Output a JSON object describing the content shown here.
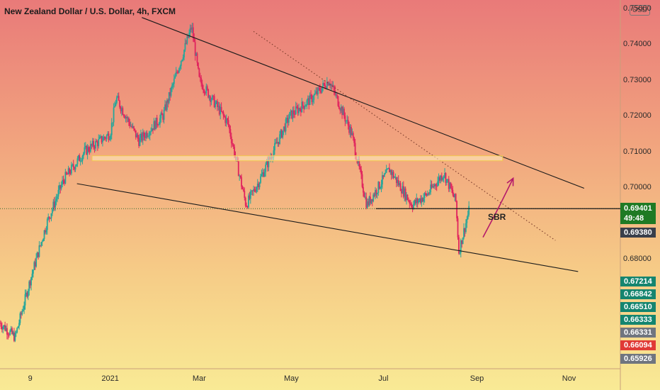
{
  "currency": "USD",
  "current_price": {
    "value": "0.69401",
    "countdown": "49:48",
    "color": "#1f7a24"
  },
  "price_badges": [
    {
      "value": "0.69380",
      "color": "#3a3f4b"
    },
    {
      "value": "0.67214",
      "color": "#15856f"
    },
    {
      "value": "0.66842",
      "color": "#15856f"
    },
    {
      "value": "0.66510",
      "color": "#15856f"
    },
    {
      "value": "0.66333",
      "color": "#15856f"
    },
    {
      "value": "0.66331",
      "color": "#70757f"
    },
    {
      "value": "0.66094",
      "color": "#e03a36"
    },
    {
      "value": "0.65926",
      "color": "#70757f"
    }
  ],
  "chart_data": {
    "type": "candlestick",
    "title": "New Zealand Dollar / U.S. Dollar, 4h, FXCM",
    "y_ticks": [
      "0.75000",
      "0.74000",
      "0.73000",
      "0.72000",
      "0.71000",
      "0.70000",
      "0.68000"
    ],
    "x_ticks": [
      "9",
      "2021",
      "Mar",
      "May",
      "Jul",
      "Sep",
      "Nov"
    ],
    "x_range": [
      "2020-10-20",
      "2021-12-05"
    ],
    "ylim": [
      0.6492,
      0.7524
    ],
    "bull_color": "#26a69a",
    "bear_color": "#e0245e",
    "price_path": [
      [
        "2020-10-20",
        0.662
      ],
      [
        "2020-10-30",
        0.658
      ],
      [
        "2020-11-09",
        0.674
      ],
      [
        "2020-11-20",
        0.69
      ],
      [
        "2020-12-01",
        0.702
      ],
      [
        "2020-12-15",
        0.71
      ],
      [
        "2021-01-01",
        0.715
      ],
      [
        "2021-01-05",
        0.725
      ],
      [
        "2021-01-20",
        0.713
      ],
      [
        "2021-02-05",
        0.72
      ],
      [
        "2021-02-24",
        0.745
      ],
      [
        "2021-03-01",
        0.73
      ],
      [
        "2021-03-20",
        0.718
      ],
      [
        "2021-04-01",
        0.695
      ],
      [
        "2021-04-10",
        0.702
      ],
      [
        "2021-04-30",
        0.72
      ],
      [
        "2021-05-15",
        0.725
      ],
      [
        "2021-05-26",
        0.73
      ],
      [
        "2021-06-10",
        0.715
      ],
      [
        "2021-06-20",
        0.695
      ],
      [
        "2021-07-05",
        0.705
      ],
      [
        "2021-07-20",
        0.695
      ],
      [
        "2021-07-30",
        0.698
      ],
      [
        "2021-08-10",
        0.704
      ],
      [
        "2021-08-18",
        0.696
      ],
      [
        "2021-08-20",
        0.682
      ],
      [
        "2021-08-27",
        0.694
      ]
    ],
    "drawings": [
      {
        "kind": "trendline",
        "style": "solid",
        "from": [
          "2021-01-22",
          0.7475
        ],
        "to": [
          "2021-11-11",
          0.6997
        ]
      },
      {
        "kind": "trendline",
        "style": "solid",
        "from": [
          "2020-12-10",
          0.701
        ],
        "to": [
          "2021-11-07",
          0.6764
        ]
      },
      {
        "kind": "trendline",
        "style": "dotted",
        "from": [
          "2021-04-06",
          0.7436
        ],
        "to": [
          "2021-10-23",
          0.6851
        ]
      },
      {
        "kind": "horizontal",
        "style": "solid",
        "from": [
          "2021-06-26",
          0.694
        ],
        "to": [
          "2021-12-05",
          0.694
        ]
      },
      {
        "kind": "zone",
        "from": [
          "2020-12-20",
          0.7088
        ],
        "to": [
          "2021-09-18",
          0.7074
        ],
        "fill": "#fff1c2",
        "stroke": "#f2c94c"
      },
      {
        "kind": "arrow",
        "points": [
          [
            "2021-09-05",
            0.686
          ],
          [
            "2021-09-15",
            0.694
          ],
          [
            "2021-09-25",
            0.7025
          ]
        ],
        "color": "#b51a6a"
      }
    ],
    "annotations": [
      {
        "text": "SBR",
        "at": [
          "2021-09-05",
          0.6936
        ]
      }
    ],
    "grid": false
  }
}
